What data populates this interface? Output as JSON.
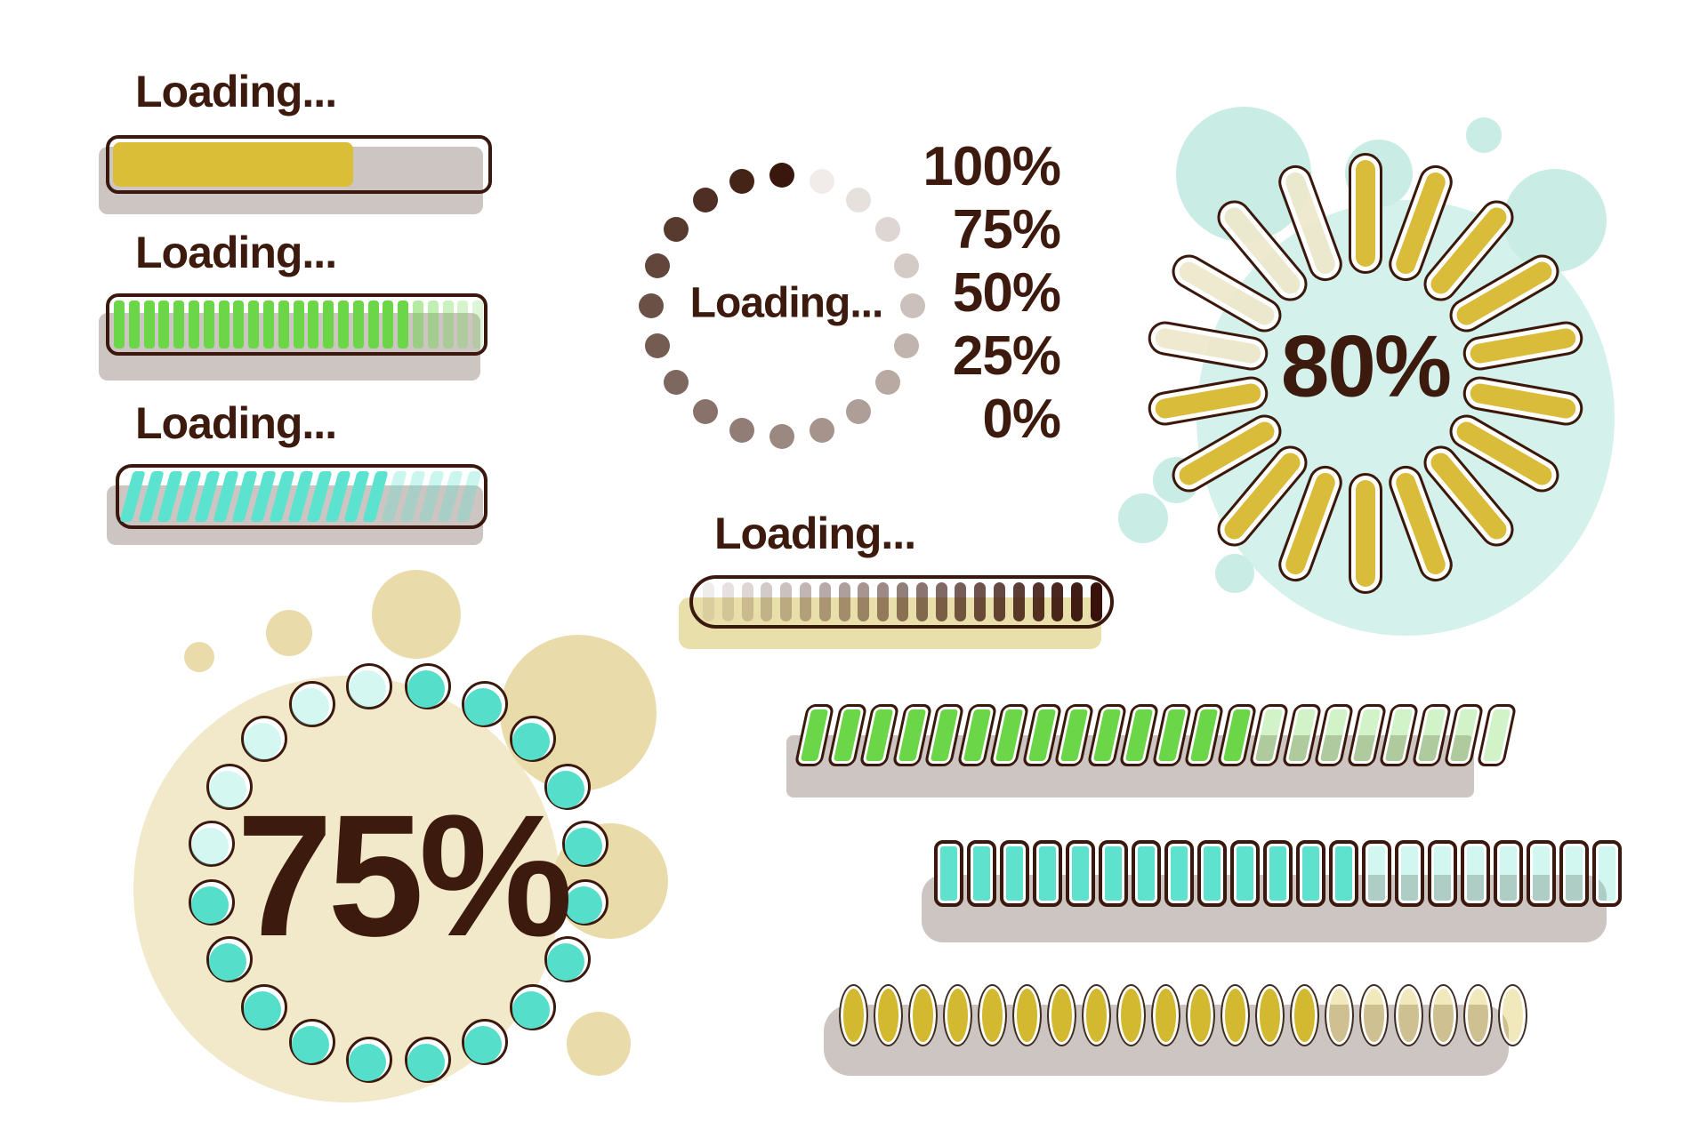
{
  "loading_bars": {
    "bar1": {
      "label": "Loading...",
      "progress_percent": 64
    },
    "bar2": {
      "label": "Loading...",
      "segments": 25,
      "filled": 20
    },
    "bar3": {
      "label": "Loading...",
      "segments": 19,
      "filled": 14
    }
  },
  "dots_spinner": {
    "center_label": "Loading...",
    "dot_count": 20,
    "scale_labels": [
      "100%",
      "75%",
      "50%",
      "25%",
      "0%"
    ]
  },
  "sun_spinner": {
    "value_label": "80%",
    "ray_count": 18,
    "filled_rays": 14
  },
  "ring_spinner": {
    "value_label": "75%",
    "dot_count": 20,
    "filled_dots": 15
  },
  "gradient_bar": {
    "label": "Loading...",
    "segment_count": 21
  },
  "bottom_bars": {
    "green": {
      "segments": 22,
      "filled": 14
    },
    "teal": {
      "segments": 21,
      "filled": 13
    },
    "yellow": {
      "segments": 20,
      "filled": 14
    }
  },
  "colors": {
    "ink": "#3a180d",
    "text": "#3d1a0e",
    "yellow": "#dbbe38",
    "sun_yellow": "#d9bc3a",
    "oval_yellow": "#d2b92f",
    "green": "#6bd647",
    "teal_stripe": "#5ce3cf",
    "teal_segment": "#5fe2cd",
    "ring_teal": "#55dfcb",
    "shadow_gray": "#cdc5c2",
    "shadow_yellow": "#e9dfab",
    "mint_main": "#d5f1eb",
    "mint_satellite": "#c9ece5",
    "beige_main": "#f1e9c9",
    "beige_satellite": "#e9dcaa",
    "faded_ray": "#ede7cb",
    "dot_dark": "#3a170c",
    "dot_light": "#f1ece9",
    "gradient_segment": "#38120a"
  }
}
